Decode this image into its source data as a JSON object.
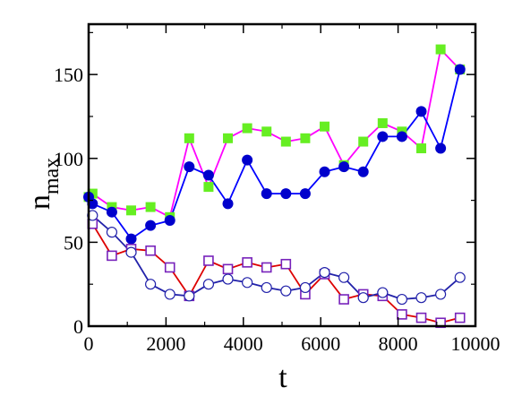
{
  "chart_data": {
    "type": "line",
    "title": "",
    "xlabel": "t",
    "ylabel": {
      "main": "n",
      "subscript": "max"
    },
    "xlim": [
      0,
      10000
    ],
    "ylim": [
      0,
      180
    ],
    "xticks": [
      0,
      2000,
      4000,
      6000,
      8000,
      10000
    ],
    "yticks": [
      0,
      50,
      100,
      150
    ],
    "xtick_labels": [
      "0",
      "2000",
      "4000",
      "6000",
      "8000",
      "10000"
    ],
    "ytick_labels": [
      "0",
      "50",
      "100",
      "150"
    ],
    "grid": false,
    "legend": "none",
    "series": [
      {
        "line_color": "#ff00ff",
        "marker": "square-filled",
        "marker_color": "#66ee22",
        "points": [
          [
            0,
            77
          ],
          [
            100,
            79
          ],
          [
            600,
            71
          ],
          [
            1100,
            69
          ],
          [
            1600,
            71
          ],
          [
            2100,
            65
          ],
          [
            2600,
            112
          ],
          [
            3100,
            83
          ],
          [
            3600,
            112
          ],
          [
            4100,
            118
          ],
          [
            4600,
            116
          ],
          [
            5100,
            110
          ],
          [
            5600,
            112
          ],
          [
            6100,
            119
          ],
          [
            6600,
            96
          ],
          [
            7100,
            110
          ],
          [
            7600,
            121
          ],
          [
            8100,
            116
          ],
          [
            8600,
            106
          ],
          [
            9100,
            165
          ],
          [
            9600,
            153
          ]
        ]
      },
      {
        "line_color": "#0000ff",
        "marker": "circle-filled",
        "marker_color": "#0000cc",
        "points": [
          [
            0,
            77
          ],
          [
            100,
            73
          ],
          [
            600,
            68
          ],
          [
            1100,
            52
          ],
          [
            1600,
            60
          ],
          [
            2100,
            63
          ],
          [
            2600,
            95
          ],
          [
            3100,
            90
          ],
          [
            3600,
            73
          ],
          [
            4100,
            99
          ],
          [
            4600,
            79
          ],
          [
            5100,
            79
          ],
          [
            5600,
            79
          ],
          [
            6100,
            92
          ],
          [
            6600,
            95
          ],
          [
            7100,
            92
          ],
          [
            7600,
            113
          ],
          [
            8100,
            113
          ],
          [
            8600,
            128
          ],
          [
            9100,
            106
          ],
          [
            9600,
            153
          ]
        ]
      },
      {
        "line_color": "#dd0000",
        "marker": "square-open",
        "marker_color": "#7722bb",
        "points": [
          [
            100,
            61
          ],
          [
            600,
            42
          ],
          [
            1100,
            46
          ],
          [
            1600,
            45
          ],
          [
            2100,
            35
          ],
          [
            2600,
            18
          ],
          [
            3100,
            39
          ],
          [
            3600,
            34
          ],
          [
            4100,
            38
          ],
          [
            4600,
            35
          ],
          [
            5100,
            37
          ],
          [
            5600,
            19
          ],
          [
            6100,
            31
          ],
          [
            6600,
            16
          ],
          [
            7100,
            19
          ],
          [
            7600,
            18
          ],
          [
            8100,
            7
          ],
          [
            8600,
            5
          ],
          [
            9100,
            2
          ],
          [
            9600,
            5
          ]
        ]
      },
      {
        "line_color": "#2222aa",
        "marker": "circle-open",
        "marker_color": "#2222aa",
        "points": [
          [
            100,
            66
          ],
          [
            600,
            56
          ],
          [
            1100,
            44
          ],
          [
            1600,
            25
          ],
          [
            2100,
            19
          ],
          [
            2600,
            18
          ],
          [
            3100,
            25
          ],
          [
            3600,
            28
          ],
          [
            4100,
            26
          ],
          [
            4600,
            23
          ],
          [
            5100,
            21
          ],
          [
            5600,
            23
          ],
          [
            6100,
            32
          ],
          [
            6600,
            29
          ],
          [
            7100,
            17
          ],
          [
            7600,
            20
          ],
          [
            8100,
            16
          ],
          [
            8600,
            17
          ],
          [
            9100,
            19
          ],
          [
            9600,
            29
          ]
        ]
      }
    ]
  }
}
